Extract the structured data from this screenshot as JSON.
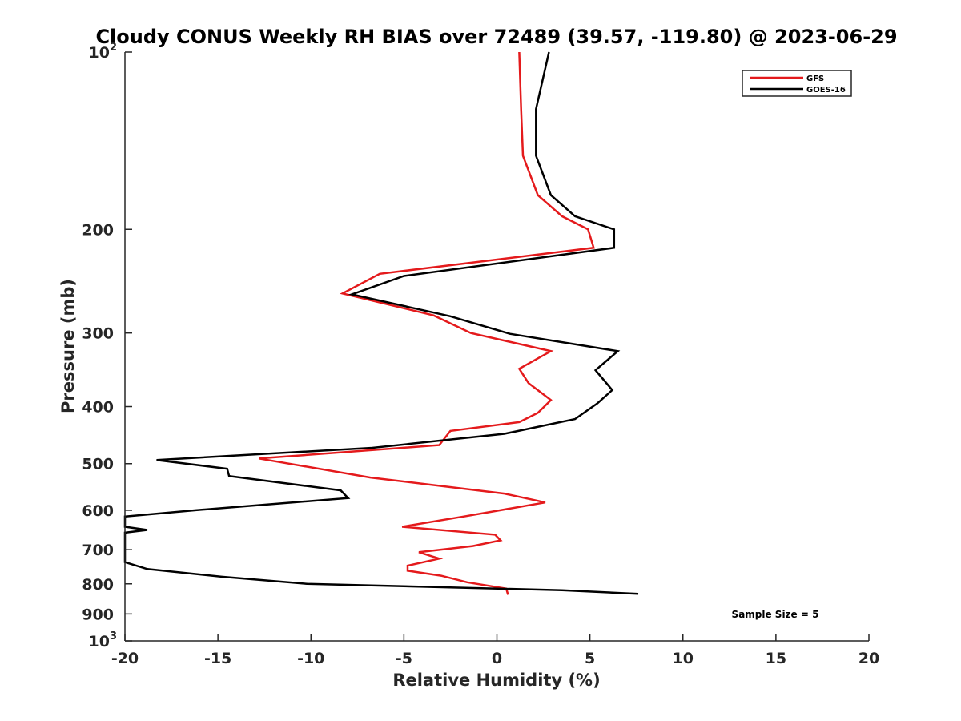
{
  "chart_data": {
    "type": "line",
    "title": "Cloudy CONUS Weekly RH BIAS over 72489 (39.57, -119.80) @ 2023-06-29",
    "xlabel": "Relative Humidity (%)",
    "ylabel": "Pressure (mb)",
    "xlim": [
      -20,
      20
    ],
    "ylim": [
      100,
      1000
    ],
    "y_scale": "log",
    "y_reversed": true,
    "x_ticks": [
      -20,
      -15,
      -10,
      -5,
      0,
      5,
      10,
      15,
      20
    ],
    "y_ticks": [
      {
        "value": 100,
        "label": "10",
        "sup": "2"
      },
      {
        "value": 200,
        "label": "200",
        "sup": ""
      },
      {
        "value": 300,
        "label": "300",
        "sup": ""
      },
      {
        "value": 400,
        "label": "400",
        "sup": ""
      },
      {
        "value": 500,
        "label": "500",
        "sup": ""
      },
      {
        "value": 600,
        "label": "600",
        "sup": ""
      },
      {
        "value": 700,
        "label": "700",
        "sup": ""
      },
      {
        "value": 800,
        "label": "800",
        "sup": ""
      },
      {
        "value": 900,
        "label": "900",
        "sup": ""
      },
      {
        "value": 1000,
        "label": "10",
        "sup": "3"
      }
    ],
    "grid": false,
    "legend_position": "top-right",
    "annotation": "Sample Size = 5",
    "series": [
      {
        "name": "GFS",
        "color": "#e41a1c",
        "points": [
          [
            1.2,
            100
          ],
          [
            1.3,
            125
          ],
          [
            1.4,
            150
          ],
          [
            2.2,
            175
          ],
          [
            3.5,
            190
          ],
          [
            4.9,
            200
          ],
          [
            5.2,
            215
          ],
          [
            -6.3,
            238
          ],
          [
            -8.3,
            257
          ],
          [
            -3.4,
            280
          ],
          [
            -1.4,
            300
          ],
          [
            2.9,
            322
          ],
          [
            1.2,
            345
          ],
          [
            1.7,
            365
          ],
          [
            2.9,
            390
          ],
          [
            2.2,
            410
          ],
          [
            1.2,
            425
          ],
          [
            -2.5,
            440
          ],
          [
            -3.1,
            465
          ],
          [
            -12.8,
            490
          ],
          [
            -6.8,
            528
          ],
          [
            0.4,
            562
          ],
          [
            2.6,
            582
          ],
          [
            -1.8,
            615
          ],
          [
            -5.1,
            640
          ],
          [
            -0.1,
            660
          ],
          [
            0.2,
            675
          ],
          [
            -1.3,
            690
          ],
          [
            -4.2,
            707
          ],
          [
            -3.1,
            725
          ],
          [
            -4.8,
            745
          ],
          [
            -4.8,
            760
          ],
          [
            -3.0,
            775
          ],
          [
            -1.6,
            795
          ],
          [
            0.5,
            815
          ],
          [
            0.6,
            835
          ]
        ]
      },
      {
        "name": "GOES-16",
        "color": "#000000",
        "points": [
          [
            2.8,
            100
          ],
          [
            2.1,
            125
          ],
          [
            2.1,
            150
          ],
          [
            2.9,
            175
          ],
          [
            4.2,
            190
          ],
          [
            6.3,
            200
          ],
          [
            6.3,
            215
          ],
          [
            -5.0,
            240
          ],
          [
            -7.8,
            258
          ],
          [
            -2.5,
            281
          ],
          [
            0.7,
            301
          ],
          [
            6.5,
            322
          ],
          [
            5.3,
            347
          ],
          [
            6.2,
            375
          ],
          [
            5.4,
            395
          ],
          [
            4.2,
            420
          ],
          [
            0.4,
            445
          ],
          [
            -6.7,
            470
          ],
          [
            -18.3,
            493
          ],
          [
            -14.5,
            510
          ],
          [
            -14.4,
            525
          ],
          [
            -8.4,
            555
          ],
          [
            -8.0,
            572
          ],
          [
            -16.2,
            600
          ],
          [
            -20.0,
            615
          ],
          [
            -20.0,
            640
          ],
          [
            -18.8,
            648
          ],
          [
            -20.0,
            655
          ],
          [
            -20.0,
            735
          ],
          [
            -18.8,
            755
          ],
          [
            -14.8,
            778
          ],
          [
            -10.2,
            800
          ],
          [
            3.5,
            820
          ],
          [
            7.6,
            832
          ]
        ]
      }
    ]
  }
}
